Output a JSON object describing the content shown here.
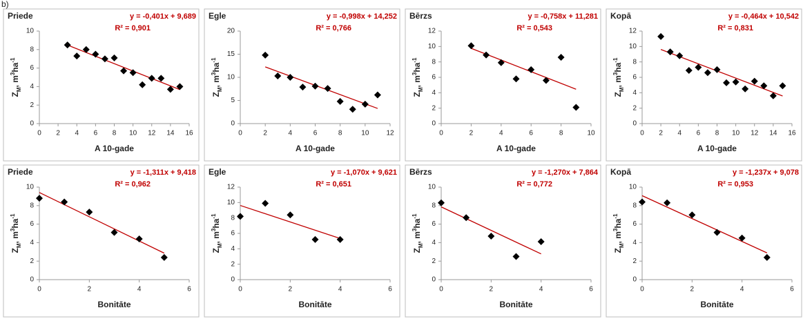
{
  "label": "b)",
  "chart_data": [
    {
      "type": "scatter",
      "title": "Priede",
      "xlabel": "A 10-gade",
      "ylabel_parts": [
        "Z",
        "M",
        ", m",
        "3",
        "ha",
        "-1"
      ],
      "x": [
        3,
        4,
        5,
        6,
        7,
        8,
        9,
        10,
        11,
        12,
        13,
        14,
        15
      ],
      "values": [
        8.5,
        7.3,
        8.0,
        7.5,
        7.0,
        7.1,
        5.7,
        5.5,
        4.2,
        4.9,
        4.9,
        3.7,
        4.0
      ],
      "xlim": [
        0,
        16
      ],
      "xticks": [
        0,
        2,
        4,
        6,
        8,
        10,
        12,
        14,
        16
      ],
      "ylim": [
        0,
        10
      ],
      "yticks": [
        0,
        2,
        4,
        6,
        8,
        10
      ],
      "marker_color": "#000000",
      "trendline": {
        "slope": -0.401,
        "intercept": 9.689,
        "color": "#c00000",
        "label": "y = -0,401x + 9,689",
        "r2": 0.901,
        "r2_label": "R² = 0,901"
      }
    },
    {
      "type": "scatter",
      "title": "Egle",
      "xlabel": "A 10-gade",
      "ylabel_parts": [
        "Z",
        "M",
        ", m",
        "3",
        "ha",
        "-1"
      ],
      "x": [
        2,
        3,
        4,
        5,
        6,
        7,
        8,
        9,
        10,
        11
      ],
      "values": [
        14.8,
        10.3,
        10.0,
        7.9,
        8.1,
        7.6,
        4.8,
        3.1,
        4.2,
        6.2
      ],
      "xlim": [
        0,
        12
      ],
      "xticks": [
        0,
        2,
        4,
        6,
        8,
        10,
        12
      ],
      "ylim": [
        0,
        20
      ],
      "yticks": [
        0,
        5,
        10,
        15,
        20
      ],
      "marker_color": "#000000",
      "trendline": {
        "slope": -0.998,
        "intercept": 14.252,
        "color": "#c00000",
        "label": "y = -0,998x + 14,252",
        "r2": 0.766,
        "r2_label": "R² = 0,766"
      }
    },
    {
      "type": "scatter",
      "title": "Bērzs",
      "xlabel": "A 10-gade",
      "ylabel_parts": [
        "Z",
        "M",
        ", m",
        "3",
        "ha",
        "-1"
      ],
      "x": [
        2,
        3,
        4,
        5,
        6,
        7,
        8,
        9
      ],
      "values": [
        10.1,
        8.9,
        7.9,
        5.8,
        7.0,
        5.6,
        8.6,
        2.1
      ],
      "xlim": [
        0,
        10
      ],
      "xticks": [
        0,
        2,
        4,
        6,
        8,
        10
      ],
      "ylim": [
        0,
        12
      ],
      "yticks": [
        0,
        2,
        4,
        6,
        8,
        10,
        12
      ],
      "marker_color": "#000000",
      "trendline": {
        "slope": -0.758,
        "intercept": 11.281,
        "color": "#c00000",
        "label": "y = -0,758x + 11,281",
        "r2": 0.543,
        "r2_label": "R² = 0,543"
      }
    },
    {
      "type": "scatter",
      "title": "Kopā",
      "xlabel": "A 10-gade",
      "ylabel_parts": [
        "Z",
        "M",
        ", m",
        "3",
        "ha",
        "-1"
      ],
      "x": [
        2,
        3,
        4,
        5,
        6,
        7,
        8,
        9,
        10,
        11,
        12,
        13,
        14,
        15
      ],
      "values": [
        11.3,
        9.3,
        8.8,
        6.9,
        7.3,
        6.6,
        7.0,
        5.3,
        5.4,
        4.5,
        5.5,
        4.9,
        3.6,
        4.9
      ],
      "xlim": [
        0,
        16
      ],
      "xticks": [
        0,
        2,
        4,
        6,
        8,
        10,
        12,
        14,
        16
      ],
      "ylim": [
        0,
        12
      ],
      "yticks": [
        0,
        2,
        4,
        6,
        8,
        10,
        12
      ],
      "marker_color": "#000000",
      "trendline": {
        "slope": -0.464,
        "intercept": 10.542,
        "color": "#c00000",
        "label": "y = -0,464x + 10,542",
        "r2": 0.831,
        "r2_label": "R² = 0,831"
      }
    },
    {
      "type": "scatter",
      "title": "Priede",
      "xlabel": "Bonitāte",
      "ylabel_parts": [
        "Z",
        "M",
        ", m",
        "3",
        "ha",
        "-1"
      ],
      "x": [
        0,
        1,
        2,
        3,
        4,
        5
      ],
      "values": [
        8.8,
        8.4,
        7.3,
        5.1,
        4.4,
        2.4
      ],
      "xlim": [
        0,
        6
      ],
      "xticks": [
        0,
        2,
        4,
        6
      ],
      "ylim": [
        0,
        10
      ],
      "yticks": [
        0,
        2,
        4,
        6,
        8,
        10
      ],
      "marker_color": "#000000",
      "trendline": {
        "slope": -1.311,
        "intercept": 9.418,
        "color": "#c00000",
        "label": "y = -1,311x + 9,418",
        "r2": 0.962,
        "r2_label": "R² = 0,962"
      }
    },
    {
      "type": "scatter",
      "title": "Egle",
      "xlabel": "Bonitāte",
      "ylabel_parts": [
        "Z",
        "M",
        ", m",
        "3",
        "ha",
        "-1"
      ],
      "x": [
        0,
        1,
        2,
        3,
        4
      ],
      "values": [
        8.2,
        9.9,
        8.4,
        5.2,
        5.2
      ],
      "xlim": [
        0,
        6
      ],
      "xticks": [
        0,
        2,
        4,
        6
      ],
      "ylim": [
        0,
        12
      ],
      "yticks": [
        0,
        2,
        4,
        6,
        8,
        10,
        12
      ],
      "marker_color": "#000000",
      "trendline": {
        "slope": -1.07,
        "intercept": 9.621,
        "color": "#c00000",
        "label": "y = -1,070x + 9,621",
        "r2": 0.651,
        "r2_label": "R² = 0,651"
      }
    },
    {
      "type": "scatter",
      "title": "Bērzs",
      "xlabel": "Bonitāte",
      "ylabel_parts": [
        "Z",
        "M",
        ", m",
        "3",
        "ha",
        "-1"
      ],
      "x": [
        0,
        1,
        2,
        3,
        4
      ],
      "values": [
        8.3,
        6.7,
        4.7,
        2.5,
        4.1
      ],
      "xlim": [
        0,
        6
      ],
      "xticks": [
        0,
        2,
        4,
        6
      ],
      "ylim": [
        0,
        10
      ],
      "yticks": [
        0,
        2,
        4,
        6,
        8,
        10
      ],
      "marker_color": "#000000",
      "trendline": {
        "slope": -1.27,
        "intercept": 7.864,
        "color": "#c00000",
        "label": "y = -1,270x + 7,864",
        "r2": 0.772,
        "r2_label": "R² = 0,772"
      }
    },
    {
      "type": "scatter",
      "title": "Kopā",
      "xlabel": "Bonitāte",
      "ylabel_parts": [
        "Z",
        "M",
        ", m",
        "3",
        "ha",
        "-1"
      ],
      "x": [
        0,
        1,
        2,
        3,
        4,
        5
      ],
      "values": [
        8.4,
        8.3,
        7.0,
        5.1,
        4.5,
        2.4
      ],
      "xlim": [
        0,
        6
      ],
      "xticks": [
        0,
        2,
        4,
        6
      ],
      "ylim": [
        0,
        10
      ],
      "yticks": [
        0,
        2,
        4,
        6,
        8,
        10
      ],
      "marker_color": "#000000",
      "trendline": {
        "slope": -1.237,
        "intercept": 9.078,
        "color": "#c00000",
        "label": "y = -1,237x + 9,078",
        "r2": 0.953,
        "r2_label": "R² = 0,953"
      }
    }
  ]
}
